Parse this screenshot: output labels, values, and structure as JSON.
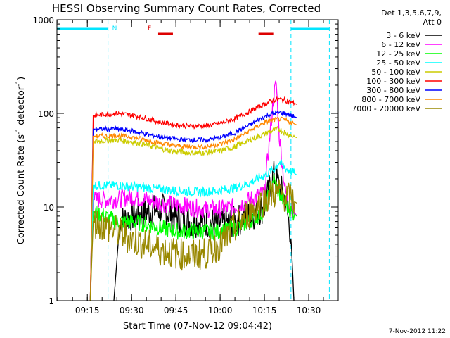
{
  "chart_data": {
    "type": "line",
    "title": "HESSI Observing Summary Count Rates, Corrected",
    "xlabel": "Start Time (07-Nov-12 09:04:42)",
    "ylabel": "Corrected Count Rate (s⁻¹ detector⁻¹)",
    "yscale": "log",
    "ylim": [
      1,
      1000
    ],
    "y_ticks": [
      {
        "value": 1,
        "label": "1"
      },
      {
        "value": 10,
        "label": "10"
      },
      {
        "value": 100,
        "label": "100"
      },
      {
        "value": 1000,
        "label": "1000"
      }
    ],
    "xlim": [
      "09:04:42",
      "10:40:00"
    ],
    "x_ticks": [
      "09:15",
      "09:30",
      "09:45",
      "10:00",
      "10:15",
      "10:30"
    ],
    "legend_title": [
      "Det 1,3,5,6,7,9,",
      "Att 0"
    ],
    "legend_position": "right",
    "series": [
      {
        "name": "3 - 6 keV",
        "color": "#000000",
        "points": [
          [
            "09:24",
            1
          ],
          [
            "09:26",
            7
          ],
          [
            "09:30",
            8
          ],
          [
            "09:35",
            9
          ],
          [
            "09:40",
            9.5
          ],
          [
            "09:45",
            8
          ],
          [
            "09:50",
            7
          ],
          [
            "09:55",
            7
          ],
          [
            "10:00",
            6.5
          ],
          [
            "10:05",
            7
          ],
          [
            "10:10",
            8
          ],
          [
            "10:15",
            10
          ],
          [
            "10:18",
            22
          ],
          [
            "10:20",
            17
          ],
          [
            "10:22",
            12
          ],
          [
            "10:24",
            5
          ],
          [
            "10:25",
            1
          ]
        ]
      },
      {
        "name": "6 - 12 keV",
        "color": "#ff00ff",
        "points": [
          [
            "09:16",
            1
          ],
          [
            "09:17",
            12
          ],
          [
            "09:25",
            12
          ],
          [
            "09:30",
            13
          ],
          [
            "09:35",
            12
          ],
          [
            "09:40",
            11
          ],
          [
            "09:45",
            10.5
          ],
          [
            "09:50",
            10
          ],
          [
            "09:55",
            9.5
          ],
          [
            "10:00",
            9.5
          ],
          [
            "10:05",
            10
          ],
          [
            "10:10",
            12
          ],
          [
            "10:15",
            14
          ],
          [
            "10:18",
            140
          ],
          [
            "10:19",
            210
          ],
          [
            "10:20",
            60
          ],
          [
            "10:22",
            15
          ],
          [
            "10:24",
            10
          ],
          [
            "10:26",
            8
          ]
        ]
      },
      {
        "name": "12 - 25 keV",
        "color": "#00ff00",
        "points": [
          [
            "09:16",
            1
          ],
          [
            "09:17",
            9
          ],
          [
            "09:25",
            7
          ],
          [
            "09:30",
            7
          ],
          [
            "09:35",
            6.5
          ],
          [
            "09:40",
            6
          ],
          [
            "09:45",
            5.5
          ],
          [
            "09:50",
            5.5
          ],
          [
            "09:55",
            5.5
          ],
          [
            "10:00",
            5.5
          ],
          [
            "10:05",
            6
          ],
          [
            "10:10",
            7
          ],
          [
            "10:15",
            9
          ],
          [
            "10:18",
            20
          ],
          [
            "10:20",
            14
          ],
          [
            "10:22",
            11
          ],
          [
            "10:24",
            9
          ],
          [
            "10:26",
            8
          ]
        ]
      },
      {
        "name": "25 - 50 keV",
        "color": "#00ffff",
        "points": [
          [
            "09:16",
            1
          ],
          [
            "09:17",
            17
          ],
          [
            "09:25",
            17
          ],
          [
            "09:30",
            16.5
          ],
          [
            "09:35",
            16
          ],
          [
            "09:40",
            15.5
          ],
          [
            "09:45",
            15
          ],
          [
            "09:50",
            14.5
          ],
          [
            "09:55",
            14.5
          ],
          [
            "10:00",
            15
          ],
          [
            "10:05",
            16
          ],
          [
            "10:10",
            18
          ],
          [
            "10:15",
            22
          ],
          [
            "10:18",
            25
          ],
          [
            "10:20",
            30
          ],
          [
            "10:22",
            26
          ],
          [
            "10:24",
            24
          ],
          [
            "10:26",
            22
          ]
        ]
      },
      {
        "name": "50 - 100 keV",
        "color": "#cccc00",
        "points": [
          [
            "09:16",
            1
          ],
          [
            "09:17",
            50
          ],
          [
            "09:25",
            52
          ],
          [
            "09:30",
            50
          ],
          [
            "09:35",
            46
          ],
          [
            "09:40",
            42
          ],
          [
            "09:45",
            39
          ],
          [
            "09:50",
            38
          ],
          [
            "09:55",
            38
          ],
          [
            "10:00",
            40
          ],
          [
            "10:05",
            44
          ],
          [
            "10:10",
            52
          ],
          [
            "10:15",
            60
          ],
          [
            "10:18",
            66
          ],
          [
            "10:20",
            68
          ],
          [
            "10:22",
            62
          ],
          [
            "10:24",
            58
          ],
          [
            "10:26",
            55
          ]
        ]
      },
      {
        "name": "100 - 300 keV",
        "color": "#ff0000",
        "points": [
          [
            "09:16",
            1
          ],
          [
            "09:17",
            95
          ],
          [
            "09:25",
            100
          ],
          [
            "09:30",
            96
          ],
          [
            "09:35",
            88
          ],
          [
            "09:40",
            80
          ],
          [
            "09:45",
            75
          ],
          [
            "09:50",
            73
          ],
          [
            "09:55",
            74
          ],
          [
            "10:00",
            78
          ],
          [
            "10:05",
            88
          ],
          [
            "10:10",
            105
          ],
          [
            "10:15",
            125
          ],
          [
            "10:18",
            138
          ],
          [
            "10:20",
            142
          ],
          [
            "10:22",
            138
          ],
          [
            "10:24",
            132
          ],
          [
            "10:26",
            125
          ]
        ]
      },
      {
        "name": "300 - 800 keV",
        "color": "#0000ff",
        "points": [
          [
            "09:16",
            1
          ],
          [
            "09:17",
            68
          ],
          [
            "09:25",
            68
          ],
          [
            "09:30",
            65
          ],
          [
            "09:35",
            60
          ],
          [
            "09:40",
            56
          ],
          [
            "09:45",
            53
          ],
          [
            "09:50",
            52
          ],
          [
            "09:55",
            52
          ],
          [
            "10:00",
            55
          ],
          [
            "10:05",
            62
          ],
          [
            "10:10",
            75
          ],
          [
            "10:15",
            92
          ],
          [
            "10:18",
            100
          ],
          [
            "10:20",
            102
          ],
          [
            "10:22",
            100
          ],
          [
            "10:24",
            95
          ],
          [
            "10:26",
            90
          ]
        ]
      },
      {
        "name": "800 - 7000 keV",
        "color": "#ff8800",
        "points": [
          [
            "09:16",
            1
          ],
          [
            "09:17",
            57
          ],
          [
            "09:25",
            58
          ],
          [
            "09:30",
            56
          ],
          [
            "09:35",
            52
          ],
          [
            "09:40",
            48
          ],
          [
            "09:45",
            45
          ],
          [
            "09:50",
            44
          ],
          [
            "09:55",
            44
          ],
          [
            "10:00",
            47
          ],
          [
            "10:05",
            53
          ],
          [
            "10:10",
            65
          ],
          [
            "10:15",
            80
          ],
          [
            "10:18",
            85
          ],
          [
            "10:20",
            87
          ],
          [
            "10:22",
            85
          ],
          [
            "10:24",
            80
          ],
          [
            "10:26",
            75
          ]
        ]
      },
      {
        "name": "7000 - 20000 keV",
        "color": "#998800",
        "points": [
          [
            "09:16",
            1
          ],
          [
            "09:17",
            7
          ],
          [
            "09:25",
            5.5
          ],
          [
            "09:30",
            4.5
          ],
          [
            "09:35",
            4
          ],
          [
            "09:40",
            3.5
          ],
          [
            "09:45",
            3.2
          ],
          [
            "09:50",
            3
          ],
          [
            "09:55",
            3.2
          ],
          [
            "10:00",
            4
          ],
          [
            "10:05",
            6
          ],
          [
            "10:10",
            9
          ],
          [
            "10:15",
            12
          ],
          [
            "10:18",
            14
          ],
          [
            "10:20",
            14
          ],
          [
            "10:22",
            13
          ],
          [
            "10:24",
            12
          ],
          [
            "10:26",
            11
          ]
        ]
      }
    ],
    "night_bars": [
      {
        "start": "09:04:42",
        "end": "09:22"
      },
      {
        "start": "10:24",
        "end": "10:37"
      }
    ],
    "flare_bars": [
      {
        "start": "09:39",
        "end": "09:44"
      },
      {
        "start": "10:13",
        "end": "10:18"
      }
    ],
    "saa_markers": [
      {
        "label": "N",
        "time": "09:22"
      },
      {
        "label": "F",
        "time": "09:34"
      }
    ],
    "vlines": [
      "09:04:42",
      "09:22",
      "10:24",
      "10:37"
    ]
  },
  "footer_date": "7-Nov-2012 11:22"
}
